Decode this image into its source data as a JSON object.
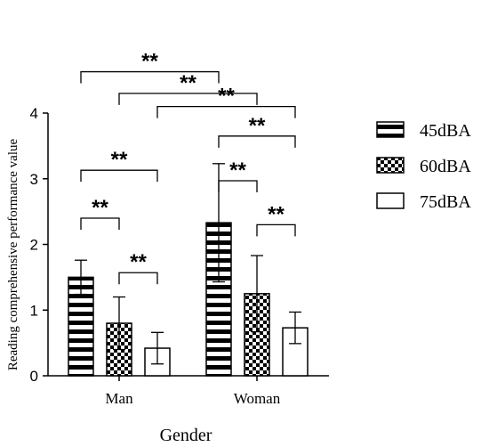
{
  "chart_data": {
    "type": "bar",
    "xlabel": "Gender",
    "ylabel": "Reading comprehensive performance value",
    "ylim": [
      0,
      4
    ],
    "yticks": [
      "0",
      "1",
      "2",
      "3",
      "4"
    ],
    "categories": [
      "Man",
      "Woman"
    ],
    "series": [
      {
        "name": "45dBA",
        "pattern": "horizontal-stripes",
        "values": [
          1.5,
          2.33
        ],
        "errors": [
          0.26,
          0.9
        ]
      },
      {
        "name": "60dBA",
        "pattern": "checkerboard",
        "values": [
          0.8,
          1.25
        ],
        "errors": [
          0.4,
          0.58
        ]
      },
      {
        "name": "75dBA",
        "pattern": "empty",
        "values": [
          0.42,
          0.73
        ],
        "errors": [
          0.24,
          0.24
        ]
      }
    ],
    "legend_position": "right",
    "grid": false,
    "significance": [
      {
        "label": "**",
        "from": [
          0,
          0
        ],
        "to": [
          1,
          0
        ],
        "bracket_y": 4.63
      },
      {
        "label": "**",
        "from": [
          0,
          1
        ],
        "to": [
          1,
          1
        ],
        "bracket_y": 4.3
      },
      {
        "label": "**",
        "from": [
          0,
          2
        ],
        "to": [
          1,
          2
        ],
        "bracket_y": 4.1
      },
      {
        "label": "**",
        "from": [
          0,
          0
        ],
        "to": [
          0,
          2
        ],
        "bracket_y": 3.13
      },
      {
        "label": "**",
        "from": [
          0,
          0
        ],
        "to": [
          0,
          1
        ],
        "bracket_y": 2.4
      },
      {
        "label": "**",
        "from": [
          0,
          1
        ],
        "to": [
          0,
          2
        ],
        "bracket_y": 1.57
      },
      {
        "label": "**",
        "from": [
          1,
          0
        ],
        "to": [
          1,
          2
        ],
        "bracket_y": 3.65
      },
      {
        "label": "**",
        "from": [
          1,
          0
        ],
        "to": [
          1,
          1
        ],
        "bracket_y": 2.97
      },
      {
        "label": "**",
        "from": [
          1,
          1
        ],
        "to": [
          1,
          2
        ],
        "bracket_y": 2.3
      }
    ]
  }
}
